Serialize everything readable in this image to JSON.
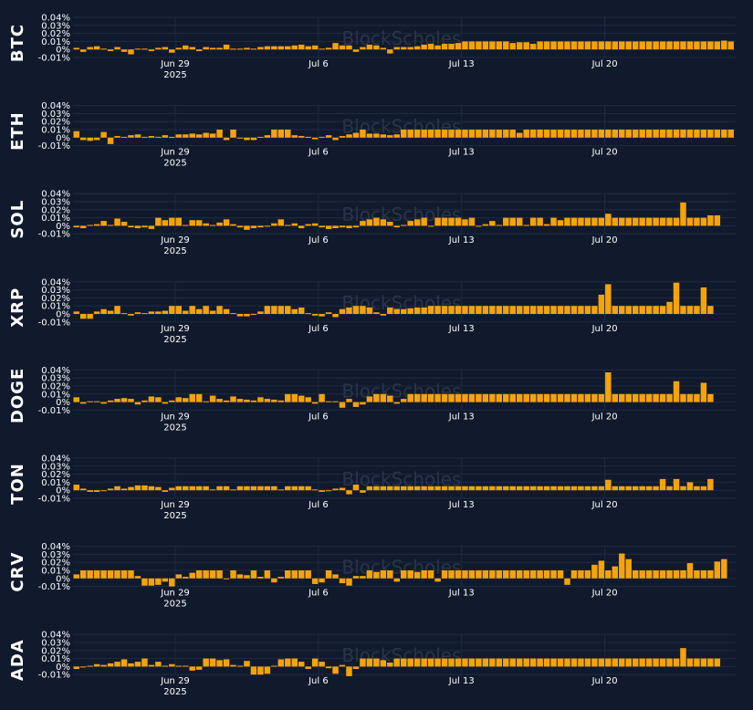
{
  "theme": {
    "background": "#111a2d",
    "bar_color": "#f5a30b",
    "grid_color": "#1f2a40",
    "text_color": "#ffffff",
    "watermark_color": "#2a3448"
  },
  "watermark": "BlockScholes",
  "x_ticks": [
    {
      "label": "Jun 29",
      "sublabel": "2025",
      "day": 5
    },
    {
      "label": "Jul 6",
      "sublabel": "",
      "day": 12
    },
    {
      "label": "Jul 13",
      "sublabel": "",
      "day": 19
    },
    {
      "label": "Jul 20",
      "sublabel": "",
      "day": 26
    }
  ],
  "y_ticks": [
    "0.04%",
    "0.03%",
    "0.02%",
    "0.01%",
    "0%",
    "-0.01%"
  ],
  "chart_data": [
    {
      "type": "bar",
      "title": "BTC",
      "ylim": [
        -0.01,
        0.04
      ],
      "x_start": "2025-06-24",
      "bars_per_day": 3,
      "values": [
        0.002,
        -0.003,
        0.003,
        0.004,
        0.001,
        -0.002,
        0.003,
        -0.003,
        -0.006,
        0.001,
        0.001,
        -0.002,
        0.002,
        0.003,
        -0.004,
        0.002,
        0.005,
        0.003,
        -0.002,
        0.003,
        0.002,
        0.002,
        0.006,
        0.001,
        0.001,
        0.002,
        0.001,
        0.003,
        0.004,
        0.004,
        0.004,
        0.004,
        0.005,
        0.006,
        0.004,
        0.005,
        0.001,
        0.002,
        0.008,
        0.005,
        0.005,
        -0.003,
        0.003,
        0.006,
        0.005,
        0.002,
        -0.005,
        0.003,
        0.003,
        0.003,
        0.004,
        0.006,
        0.007,
        0.005,
        0.007,
        0.007,
        0.008,
        0.01,
        0.01,
        0.01,
        0.01,
        0.01,
        0.01,
        0.01,
        0.008,
        0.009,
        0.009,
        0.007,
        0.01,
        0.01,
        0.01,
        0.01,
        0.01,
        0.01,
        0.01,
        0.01,
        0.01,
        0.01,
        0.01,
        0.01,
        0.01,
        0.01,
        0.01,
        0.01,
        0.01,
        0.01,
        0.01,
        0.01,
        0.01,
        0.01,
        0.01,
        0.01,
        0.01,
        0.01,
        0.01,
        0.011,
        0.01
      ]
    },
    {
      "type": "bar",
      "title": "ETH",
      "ylim": [
        -0.01,
        0.04
      ],
      "x_start": "2025-06-24",
      "bars_per_day": 3,
      "values": [
        0.008,
        -0.003,
        -0.004,
        -0.003,
        0.007,
        -0.008,
        0.002,
        0.001,
        0.003,
        0.004,
        0.001,
        0.002,
        0.001,
        0.003,
        0.001,
        0.004,
        0.004,
        0.005,
        0.004,
        0.006,
        0.005,
        0.01,
        -0.003,
        0.01,
        -0.001,
        -0.003,
        -0.003,
        0.001,
        0.003,
        0.01,
        0.01,
        0.01,
        0.003,
        0.002,
        0.001,
        -0.002,
        0.001,
        0.003,
        -0.003,
        0.002,
        0.004,
        0.006,
        0.01,
        0.005,
        0.005,
        0.004,
        0.003,
        0.004,
        0.01,
        0.01,
        0.01,
        0.01,
        0.01,
        0.01,
        0.01,
        0.01,
        0.01,
        0.01,
        0.01,
        0.01,
        0.01,
        0.01,
        0.01,
        0.01,
        0.01,
        0.006,
        0.01,
        0.01,
        0.01,
        0.01,
        0.01,
        0.01,
        0.01,
        0.01,
        0.01,
        0.01,
        0.01,
        0.01,
        0.01,
        0.01,
        0.01,
        0.01,
        0.01,
        0.01,
        0.01,
        0.01,
        0.01,
        0.01,
        0.01,
        0.01,
        0.01,
        0.01,
        0.01,
        0.01,
        0.01,
        0.01,
        0.01
      ]
    },
    {
      "type": "bar",
      "title": "SOL",
      "ylim": [
        -0.01,
        0.04
      ],
      "x_start": "2025-06-24",
      "bars_per_day": 3,
      "values": [
        -0.002,
        -0.003,
        0.001,
        0.002,
        0.006,
        0.001,
        0.009,
        0.005,
        -0.002,
        -0.003,
        -0.002,
        -0.004,
        0.01,
        0.007,
        0.01,
        0.01,
        0.001,
        0.007,
        0.007,
        0.003,
        0.001,
        0.004,
        0.008,
        0.002,
        -0.002,
        -0.005,
        -0.003,
        -0.002,
        -0.001,
        0.003,
        0.008,
        0.001,
        0.003,
        -0.003,
        0.002,
        0.003,
        -0.002,
        -0.004,
        -0.003,
        -0.002,
        -0.003,
        -0.002,
        0.006,
        0.008,
        0.01,
        0.008,
        0.005,
        -0.002,
        0.001,
        0.006,
        0.008,
        0.01,
        -0.001,
        0.01,
        0.01,
        0.01,
        0.01,
        0.008,
        0.01,
        -0.001,
        0.002,
        0.006,
        0.001,
        0.01,
        0.01,
        0.01,
        0.001,
        0.01,
        0.01,
        0.002,
        0.01,
        0.007,
        0.01,
        0.01,
        0.01,
        0.01,
        0.01,
        0.01,
        0.015,
        0.01,
        0.01,
        0.01,
        0.01,
        0.01,
        0.01,
        0.01,
        0.01,
        0.01,
        0.01,
        0.029,
        0.01,
        0.01,
        0.01,
        0.013,
        0.013
      ]
    },
    {
      "type": "bar",
      "title": "XRP",
      "ylim": [
        -0.01,
        0.04
      ],
      "x_start": "2025-06-24",
      "bars_per_day": 3,
      "values": [
        0.003,
        -0.006,
        -0.006,
        0.003,
        0.006,
        0.004,
        0.01,
        0.001,
        -0.002,
        0.002,
        0.001,
        0.003,
        0.003,
        0.004,
        0.01,
        0.01,
        0.004,
        0.01,
        0.006,
        0.01,
        0.004,
        0.01,
        0.006,
        0.001,
        -0.003,
        -0.003,
        -0.001,
        0.003,
        0.01,
        0.01,
        0.01,
        0.01,
        0.006,
        0.008,
        0.001,
        -0.002,
        -0.003,
        0.002,
        -0.004,
        0.006,
        0.008,
        0.01,
        0.01,
        0.008,
        0.002,
        -0.002,
        0.008,
        0.006,
        0.006,
        0.007,
        0.008,
        0.008,
        0.01,
        0.01,
        0.01,
        0.01,
        0.01,
        0.01,
        0.01,
        0.01,
        0.01,
        0.01,
        0.01,
        0.01,
        0.01,
        0.01,
        0.01,
        0.01,
        0.01,
        0.01,
        0.01,
        0.01,
        0.01,
        0.01,
        0.01,
        0.01,
        0.01,
        0.024,
        0.037,
        0.01,
        0.01,
        0.01,
        0.01,
        0.01,
        0.01,
        0.01,
        0.01,
        0.015,
        0.039,
        0.01,
        0.01,
        0.01,
        0.033,
        0.01
      ]
    },
    {
      "type": "bar",
      "title": "DOGE",
      "ylim": [
        -0.01,
        0.04
      ],
      "x_start": "2025-06-24",
      "bars_per_day": 3,
      "values": [
        0.006,
        -0.002,
        0.001,
        0.001,
        -0.002,
        0.002,
        0.004,
        0.005,
        0.004,
        -0.003,
        0.002,
        0.007,
        0.006,
        -0.002,
        0.002,
        0.006,
        0.005,
        0.01,
        0.01,
        0.001,
        0.008,
        0.004,
        0.002,
        0.007,
        0.004,
        0.003,
        0.002,
        0.006,
        0.004,
        0.003,
        0.002,
        0.01,
        0.01,
        0.008,
        0.006,
        -0.002,
        0.01,
        0.001,
        0.001,
        -0.007,
        0.004,
        -0.006,
        -0.003,
        0.007,
        0.01,
        0.01,
        0.008,
        -0.002,
        0.004,
        0.01,
        0.01,
        0.01,
        0.01,
        0.01,
        0.01,
        0.01,
        0.01,
        0.01,
        0.01,
        0.01,
        0.01,
        0.01,
        0.01,
        0.01,
        0.01,
        0.01,
        0.01,
        0.01,
        0.01,
        0.01,
        0.01,
        0.01,
        0.01,
        0.01,
        0.01,
        0.01,
        0.01,
        0.01,
        0.037,
        0.01,
        0.01,
        0.01,
        0.01,
        0.01,
        0.01,
        0.01,
        0.01,
        0.01,
        0.026,
        0.01,
        0.01,
        0.01,
        0.024,
        0.01
      ]
    },
    {
      "type": "bar",
      "title": "TON",
      "ylim": [
        -0.01,
        0.04
      ],
      "x_start": "2025-06-24",
      "bars_per_day": 3,
      "values": [
        0.007,
        0.002,
        -0.002,
        -0.002,
        -0.001,
        0.002,
        0.005,
        0.002,
        0.004,
        0.006,
        0.006,
        0.005,
        0.004,
        -0.002,
        0.003,
        0.005,
        0.005,
        0.005,
        0.005,
        0.005,
        0.001,
        0.005,
        0.005,
        0.001,
        0.005,
        0.005,
        0.005,
        0.005,
        0.005,
        0.005,
        0.001,
        0.005,
        0.005,
        0.005,
        0.005,
        0.001,
        -0.002,
        -0.001,
        0.002,
        0.003,
        -0.005,
        0.007,
        -0.003,
        0.005,
        0.005,
        0.005,
        0.005,
        0.005,
        0.005,
        0.005,
        0.005,
        0.005,
        0.005,
        0.005,
        0.005,
        0.005,
        0.005,
        0.005,
        0.005,
        0.005,
        0.005,
        0.005,
        0.005,
        0.005,
        0.005,
        0.005,
        0.005,
        0.005,
        0.005,
        0.005,
        0.005,
        0.005,
        0.005,
        0.005,
        0.005,
        0.005,
        0.005,
        0.005,
        0.013,
        0.005,
        0.005,
        0.005,
        0.005,
        0.005,
        0.005,
        0.005,
        0.014,
        0.005,
        0.014,
        0.005,
        0.01,
        0.005,
        0.005,
        0.014
      ]
    },
    {
      "type": "bar",
      "title": "CRV",
      "ylim": [
        -0.01,
        0.04
      ],
      "x_start": "2025-06-24",
      "bars_per_day": 3,
      "values": [
        0.005,
        0.01,
        0.01,
        0.01,
        0.01,
        0.01,
        0.01,
        0.01,
        0.01,
        0.003,
        -0.009,
        -0.009,
        -0.008,
        -0.004,
        -0.01,
        0.005,
        0.002,
        0.007,
        0.01,
        0.01,
        0.01,
        0.01,
        -0.001,
        0.01,
        0.005,
        0.004,
        0.01,
        0.002,
        0.01,
        -0.005,
        0.002,
        0.01,
        0.01,
        0.01,
        0.01,
        -0.007,
        -0.005,
        0.01,
        0.005,
        -0.006,
        -0.009,
        0.003,
        0.003,
        0.01,
        0.008,
        0.01,
        0.01,
        -0.004,
        0.01,
        0.01,
        0.008,
        0.01,
        0.01,
        -0.004,
        0.01,
        0.01,
        0.01,
        0.01,
        0.01,
        0.01,
        0.01,
        0.01,
        0.01,
        0.01,
        0.01,
        0.01,
        0.01,
        0.01,
        0.01,
        0.01,
        0.01,
        0.01,
        -0.008,
        0.01,
        0.01,
        0.01,
        0.017,
        0.022,
        0.01,
        0.015,
        0.031,
        0.024,
        0.01,
        0.01,
        0.01,
        0.01,
        0.01,
        0.01,
        0.01,
        0.01,
        0.019,
        0.01,
        0.01,
        0.01,
        0.021,
        0.024
      ]
    },
    {
      "type": "bar",
      "title": "ADA",
      "ylim": [
        -0.01,
        0.04
      ],
      "x_start": "2025-06-24",
      "bars_per_day": 3,
      "values": [
        -0.003,
        -0.001,
        0.001,
        0.003,
        0.002,
        0.004,
        0.006,
        0.009,
        0.004,
        0.006,
        0.01,
        0.002,
        0.006,
        0.001,
        0.003,
        0.001,
        0.001,
        -0.005,
        -0.004,
        0.01,
        0.01,
        0.008,
        0.009,
        0.002,
        0.001,
        0.007,
        -0.01,
        -0.01,
        -0.009,
        0.001,
        0.009,
        0.01,
        0.01,
        0.006,
        -0.003,
        0.01,
        0.006,
        -0.002,
        -0.009,
        0.002,
        -0.012,
        -0.003,
        0.01,
        0.01,
        0.01,
        0.008,
        0.005,
        0.01,
        0.01,
        0.01,
        0.01,
        0.01,
        0.01,
        0.01,
        0.01,
        0.01,
        0.01,
        0.01,
        0.01,
        0.01,
        0.01,
        0.01,
        0.01,
        0.01,
        0.01,
        0.01,
        0.01,
        0.01,
        0.01,
        0.01,
        0.01,
        0.01,
        0.01,
        0.01,
        0.01,
        0.01,
        0.01,
        0.01,
        0.01,
        0.01,
        0.01,
        0.01,
        0.01,
        0.01,
        0.01,
        0.01,
        0.01,
        0.01,
        0.01,
        0.023,
        0.01,
        0.01,
        0.01,
        0.01,
        0.01
      ]
    }
  ]
}
